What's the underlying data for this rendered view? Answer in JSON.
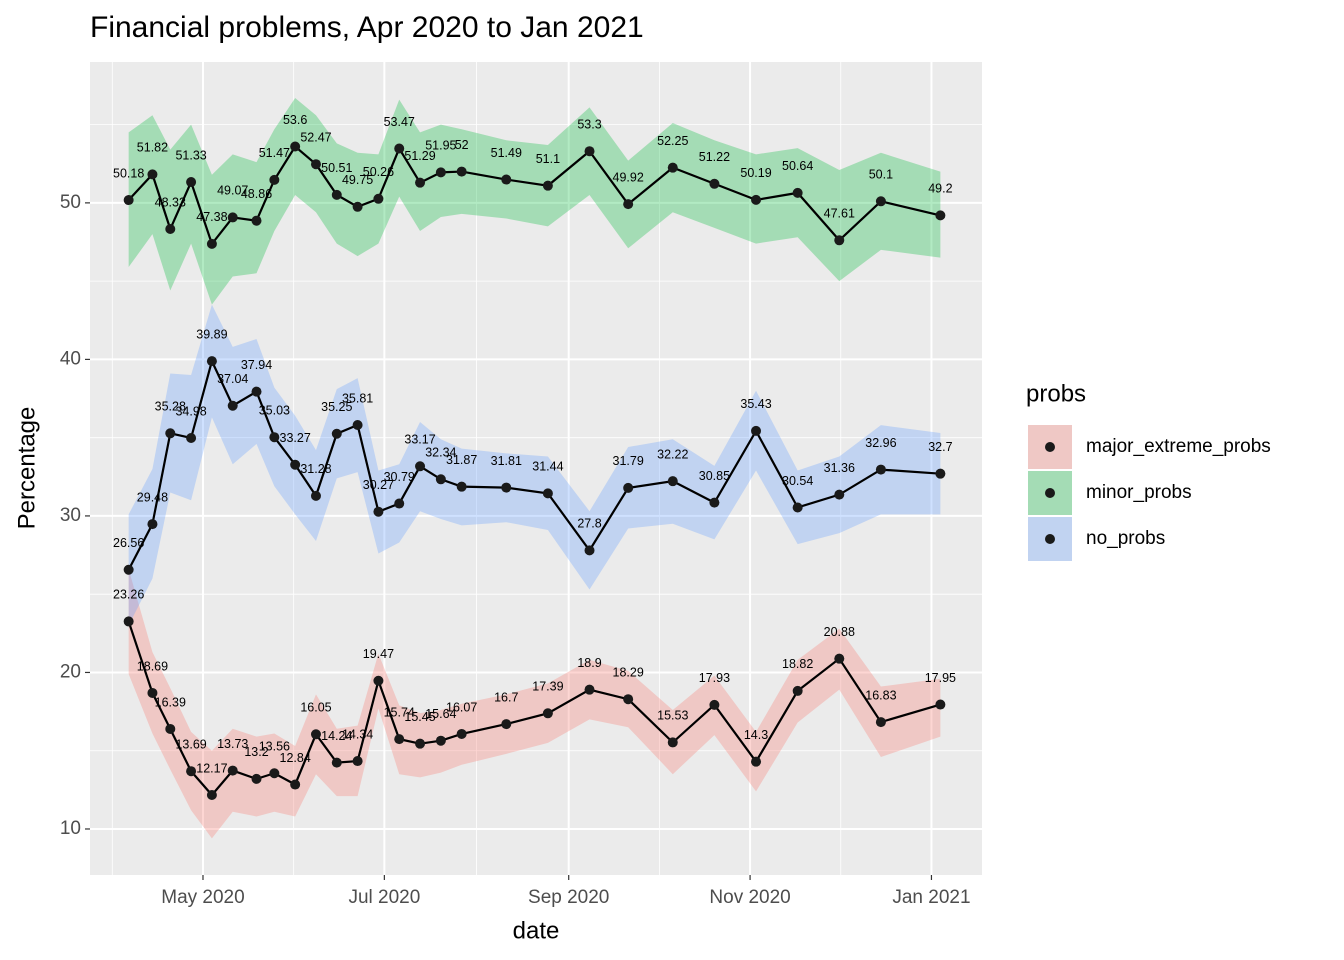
{
  "chart_data": {
    "type": "line",
    "title": "Financial problems, Apr 2020 to Jan 2021",
    "x_label": "date",
    "y_label": "Percentage",
    "legend_title": "probs",
    "legend_position": "right",
    "grid": true,
    "x": [
      "2020-04-06",
      "2020-04-14",
      "2020-04-20",
      "2020-04-27",
      "2020-05-04",
      "2020-05-11",
      "2020-05-19",
      "2020-05-25",
      "2020-06-01",
      "2020-06-08",
      "2020-06-15",
      "2020-06-22",
      "2020-06-29",
      "2020-07-06",
      "2020-07-13",
      "2020-07-20",
      "2020-07-27",
      "2020-08-11",
      "2020-08-25",
      "2020-09-08",
      "2020-09-21",
      "2020-10-06",
      "2020-10-20",
      "2020-11-03",
      "2020-11-17",
      "2020-12-01",
      "2020-12-15",
      "2021-01-04"
    ],
    "xlim": [
      "2020-03-24",
      "2021-01-18"
    ],
    "xticks": [
      {
        "value": "2020-05-01",
        "label": "May 2020"
      },
      {
        "value": "2020-07-01",
        "label": "Jul 2020"
      },
      {
        "value": "2020-09-01",
        "label": "Sep 2020"
      },
      {
        "value": "2020-11-01",
        "label": "Nov 2020"
      },
      {
        "value": "2021-01-01",
        "label": "Jan 2021"
      }
    ],
    "ylim": [
      7.06,
      59.0
    ],
    "yticks": [
      10,
      20,
      30,
      40,
      50
    ],
    "series": [
      {
        "name": "major_extreme_probs",
        "color": "#f8766d",
        "values": [
          23.26,
          18.69,
          16.39,
          13.69,
          12.17,
          13.73,
          13.2,
          13.56,
          12.84,
          16.05,
          14.24,
          14.34,
          19.47,
          15.74,
          15.45,
          15.64,
          16.07,
          16.7,
          17.39,
          18.9,
          18.29,
          15.53,
          17.93,
          14.3,
          18.82,
          20.88,
          16.83,
          17.95
        ],
        "upper": [
          26.6,
          21.3,
          19.0,
          16.2,
          15.0,
          16.4,
          15.9,
          16.1,
          15.3,
          18.6,
          16.4,
          16.6,
          21.2,
          17.9,
          17.4,
          17.6,
          18.0,
          18.6,
          19.3,
          20.8,
          20.1,
          17.6,
          19.8,
          16.2,
          20.8,
          22.8,
          19.1,
          19.6
        ],
        "lower": [
          19.9,
          16.1,
          13.8,
          11.2,
          9.4,
          11.1,
          10.8,
          11.1,
          10.8,
          13.5,
          12.1,
          12.1,
          17.7,
          13.5,
          13.3,
          13.6,
          14.1,
          14.8,
          15.5,
          17.0,
          16.5,
          13.5,
          16.0,
          12.4,
          16.8,
          18.9,
          14.6,
          15.9
        ]
      },
      {
        "name": "minor_probs",
        "color": "#00ba38",
        "values": [
          50.18,
          51.82,
          48.33,
          51.33,
          47.38,
          49.07,
          48.86,
          51.47,
          53.6,
          52.47,
          50.51,
          49.75,
          50.26,
          53.47,
          51.29,
          51.95,
          52,
          51.49,
          51.1,
          53.3,
          49.92,
          52.25,
          51.22,
          50.19,
          50.64,
          47.61,
          50.1,
          49.2
        ],
        "upper": [
          54.5,
          55.6,
          53.4,
          55.0,
          51.8,
          53.1,
          52.6,
          54.7,
          56.7,
          55.6,
          53.8,
          53.2,
          53.1,
          56.6,
          54.5,
          55.0,
          54.7,
          54.0,
          53.7,
          56.1,
          52.7,
          55.1,
          54.0,
          53.1,
          53.5,
          52.1,
          53.2,
          52.0
        ],
        "lower": [
          45.9,
          48.0,
          44.4,
          47.4,
          43.5,
          45.3,
          45.5,
          48.2,
          50.5,
          49.4,
          47.4,
          46.6,
          47.4,
          50.4,
          48.2,
          49.1,
          49.3,
          49.0,
          48.5,
          50.5,
          47.1,
          49.4,
          48.4,
          47.4,
          47.8,
          45.0,
          47.0,
          46.5
        ]
      },
      {
        "name": "no_probs",
        "color": "#619cff",
        "values": [
          26.56,
          29.48,
          35.28,
          34.98,
          39.89,
          37.04,
          37.94,
          35.03,
          33.27,
          31.28,
          35.25,
          35.81,
          30.27,
          30.79,
          33.17,
          32.34,
          31.87,
          31.81,
          31.44,
          27.8,
          31.79,
          32.22,
          30.85,
          35.43,
          30.54,
          31.36,
          32.96,
          32.7
        ],
        "upper": [
          30.1,
          33.0,
          39.1,
          39.0,
          43.5,
          40.8,
          41.3,
          38.2,
          36.4,
          34.2,
          38.1,
          38.8,
          32.9,
          33.3,
          36.0,
          34.9,
          34.3,
          34.0,
          33.8,
          30.3,
          34.4,
          34.9,
          33.2,
          38.0,
          32.9,
          33.8,
          35.8,
          35.3
        ],
        "lower": [
          23.0,
          26.0,
          31.5,
          31.0,
          36.3,
          33.3,
          34.6,
          31.9,
          30.1,
          28.4,
          32.4,
          32.8,
          27.6,
          28.3,
          30.3,
          29.8,
          29.4,
          29.6,
          29.1,
          25.3,
          29.2,
          29.5,
          28.5,
          32.9,
          28.2,
          28.9,
          30.1,
          30.1
        ]
      }
    ]
  }
}
